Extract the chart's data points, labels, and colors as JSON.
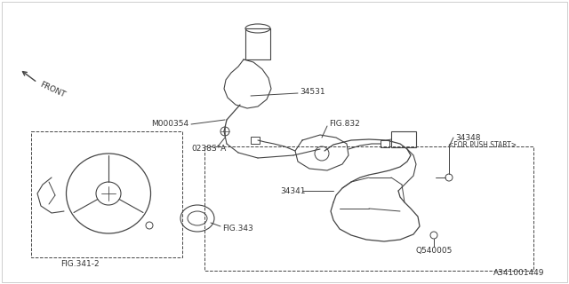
{
  "bg_color": "#ffffff",
  "line_color": "#444444",
  "text_color": "#333333",
  "part_number_footer": "A341001449",
  "labels": {
    "front": "FRONT",
    "m000354": "M000354",
    "0238s_a": "0238S*A",
    "34531": "34531",
    "fig832": "FIG.832",
    "34341": "34341",
    "34348": "34348",
    "for_push_start": "<FOR PUSH START>",
    "q540005": "Q540005",
    "fig341_2": "FIG.341-2",
    "fig343": "FIG.343"
  },
  "font_size": 6.5,
  "font_size_small": 5.5
}
